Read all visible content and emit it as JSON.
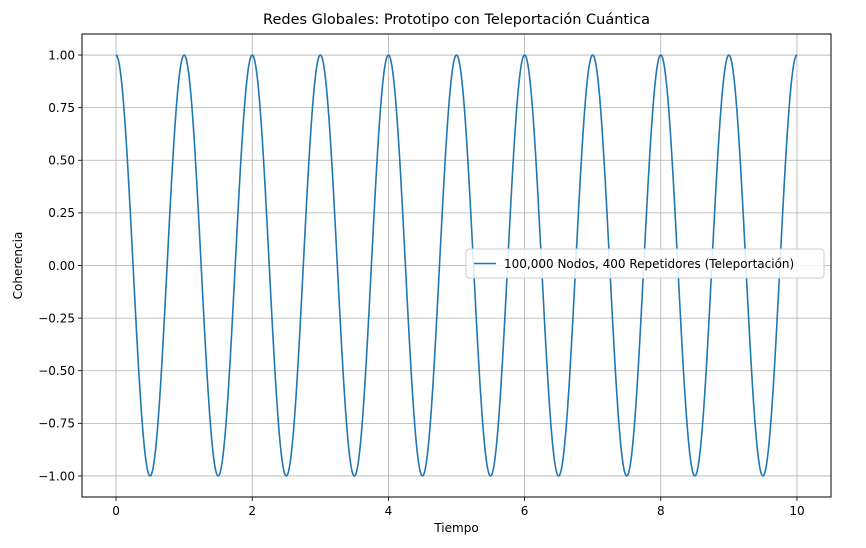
{
  "chart_data": {
    "type": "line",
    "title": "Redes Globales: Prototipo con Teleportación Cuántica",
    "xlabel": "Tiempo",
    "ylabel": "Coherencia",
    "xlim": [
      -0.5,
      10.5
    ],
    "ylim": [
      -1.1,
      1.1
    ],
    "xticks": [
      0,
      2,
      4,
      6,
      8,
      10
    ],
    "xtick_labels": [
      "0",
      "2",
      "4",
      "6",
      "8",
      "10"
    ],
    "yticks": [
      -1.0,
      -0.75,
      -0.5,
      -0.25,
      0.0,
      0.25,
      0.5,
      0.75,
      1.0
    ],
    "ytick_labels": [
      "−1.00",
      "−0.75",
      "−0.50",
      "−0.25",
      "0.00",
      "0.25",
      "0.50",
      "0.75",
      "1.00"
    ],
    "grid": true,
    "legend_position": "center-right",
    "series": [
      {
        "name": "100,000 Nodos, 400 Repetidores (Teleportación)",
        "color": "#1f77b4",
        "function": "cos(2*pi*t)",
        "x_range": [
          0,
          10
        ],
        "frequency": 1,
        "amplitude": 1,
        "x": [
          0,
          0.5,
          1,
          1.5,
          2,
          2.5,
          3,
          3.5,
          4,
          4.5,
          5,
          5.5,
          6,
          6.5,
          7,
          7.5,
          8,
          8.5,
          9,
          9.5,
          10
        ],
        "values": [
          1,
          -1,
          1,
          -1,
          1,
          -1,
          1,
          -1,
          1,
          -1,
          1,
          -1,
          1,
          -1,
          1,
          -1,
          1,
          -1,
          1,
          -1,
          1
        ]
      }
    ]
  }
}
